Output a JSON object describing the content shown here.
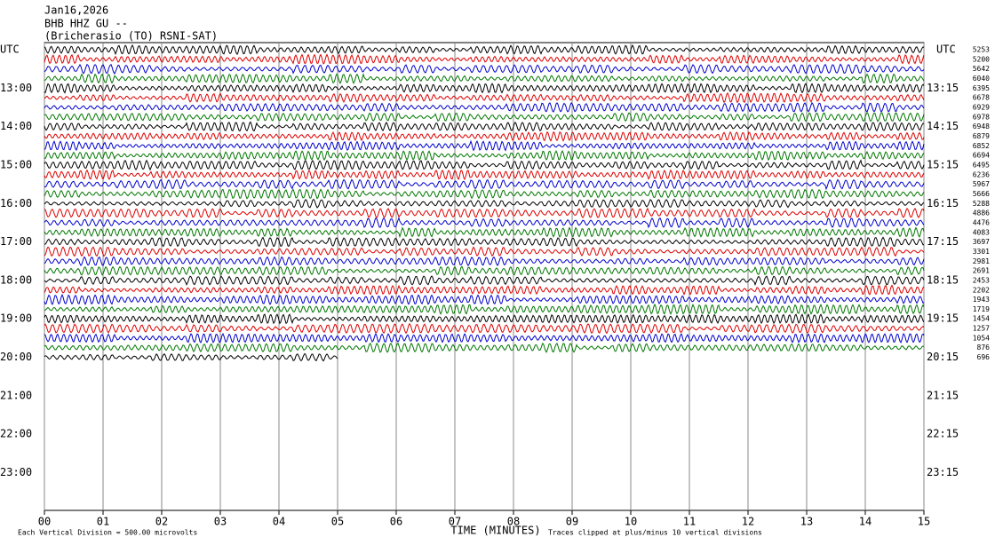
{
  "header": {
    "date": "Jan16,2026",
    "station": "BHB HHZ GU --",
    "location": "(Bricherasio (TO) RSNI-SAT)"
  },
  "left_axis": {
    "title": "UTC",
    "labels": [
      "13:00",
      "14:00",
      "15:00",
      "16:00",
      "17:00",
      "18:00",
      "19:00",
      "20:00",
      "21:00",
      "22:00",
      "23:00"
    ]
  },
  "right_axis": {
    "title": "UTC",
    "labels": [
      "13:15",
      "14:15",
      "15:15",
      "16:15",
      "17:15",
      "18:15",
      "19:15",
      "20:15",
      "21:15",
      "22:15",
      "23:15"
    ]
  },
  "trace_values": [
    "5253",
    "5200",
    "5642",
    "6040",
    "6395",
    "6678",
    "6929",
    "6978",
    "6948",
    "6879",
    "6852",
    "6694",
    "6495",
    "6236",
    "5967",
    "5666",
    "5288",
    "4886",
    "4476",
    "4083",
    "3697",
    "3301",
    "2981",
    "2691",
    "2453",
    "2202",
    "1943",
    "1719",
    "1454",
    "1257",
    "1054",
    "876",
    "696"
  ],
  "x_axis": {
    "title": "TIME (MINUTES)",
    "labels": [
      "00",
      "01",
      "02",
      "03",
      "04",
      "05",
      "06",
      "07",
      "08",
      "09",
      "10",
      "11",
      "12",
      "13",
      "14",
      "15"
    ]
  },
  "footer": {
    "division": "Each Vertical Division =  500.00 microvolts",
    "clipped": "Traces clipped at plus/minus 10 vertical divisions"
  }
}
